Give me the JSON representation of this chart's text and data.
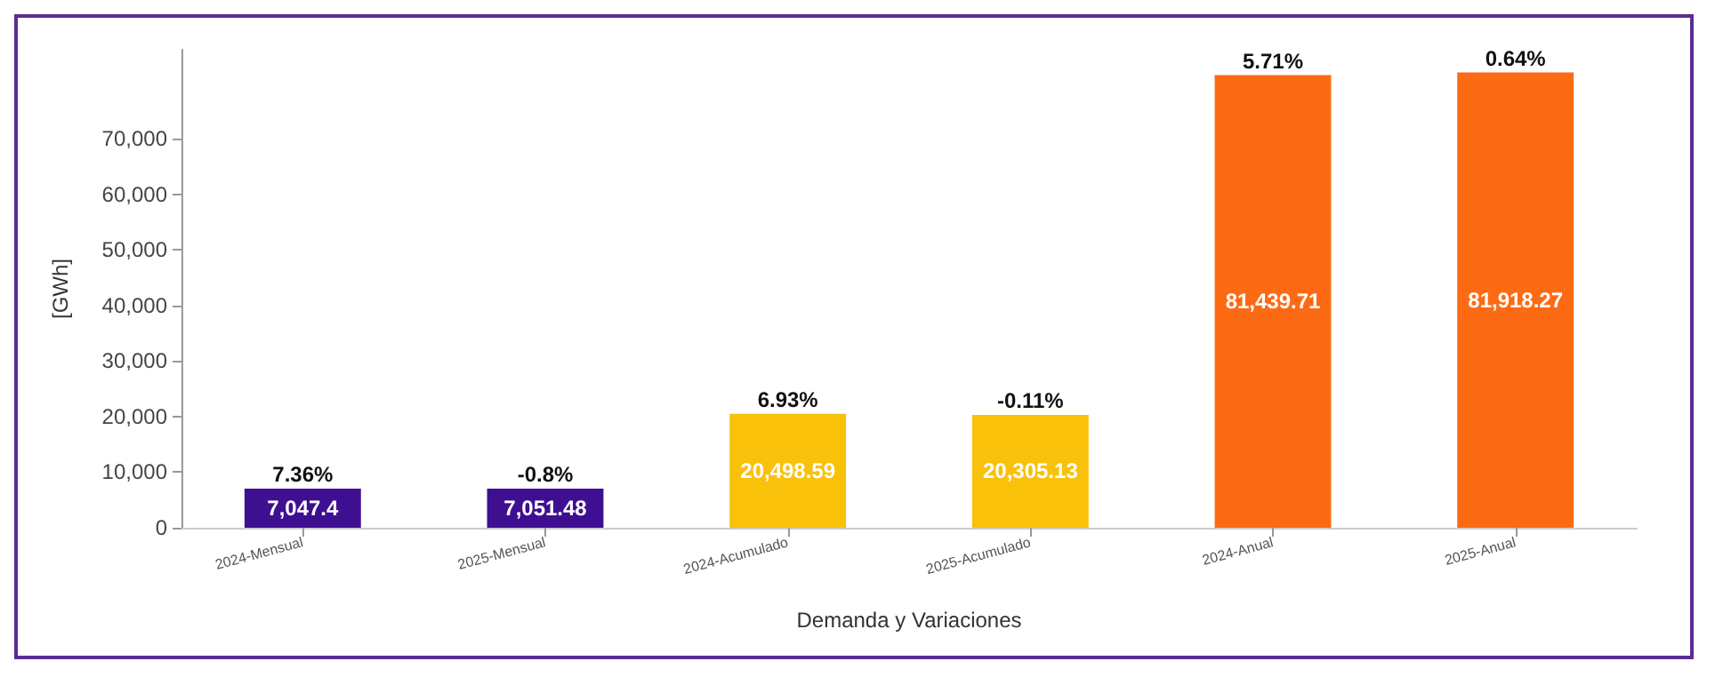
{
  "chart_data": {
    "type": "bar",
    "xlabel": "Demanda y Variaciones",
    "ylabel": "[GWh]",
    "categories": [
      "2024-Mensual",
      "2025-Mensual",
      "2024-Acumulado",
      "2025-Acumulado",
      "2024-Anual",
      "2025-Anual"
    ],
    "values": [
      7047.4,
      7051.48,
      20498.59,
      20305.13,
      81439.71,
      81918.27
    ],
    "colors": [
      "#3f0f91",
      "#3f0f91",
      "#f9c10a",
      "#f9c10a",
      "#fd6a14",
      "#fd6a14"
    ],
    "value_labels": [
      "7,047.4",
      "7,051.48",
      "20,498.59",
      "20,305.13",
      "81,439.71",
      "81,918.27"
    ],
    "annotations": [
      {
        "text": "7.36%",
        "x": "2024-Mensual",
        "y": 7047.4
      },
      {
        "text": "-0.8%",
        "x": "2025-Mensual",
        "y": 7051.48
      },
      {
        "text": "6.93%",
        "x": "2024-Acumulado",
        "y": 20498.59
      },
      {
        "text": "-0.11%",
        "x": "2025-Acumulado",
        "y": 20305.13
      },
      {
        "text": "5.71%",
        "x": "2024-Anual",
        "y": 81439.71
      },
      {
        "text": "0.64%",
        "x": "2025-Anual",
        "y": 81918.27
      }
    ],
    "ylim": [
      0,
      86000
    ],
    "yticks": [
      0,
      {
        "value": 10000,
        "label": "10,000"
      },
      {
        "value": 20000,
        "label": "20,000"
      },
      {
        "value": 30000,
        "label": "30,000"
      },
      {
        "value": 40000,
        "label": "40,000"
      },
      {
        "value": 50000,
        "label": "50,000"
      },
      {
        "value": 60000,
        "label": "60,000"
      },
      {
        "value": 70000,
        "label": "70,000"
      }
    ],
    "grid": false
  }
}
